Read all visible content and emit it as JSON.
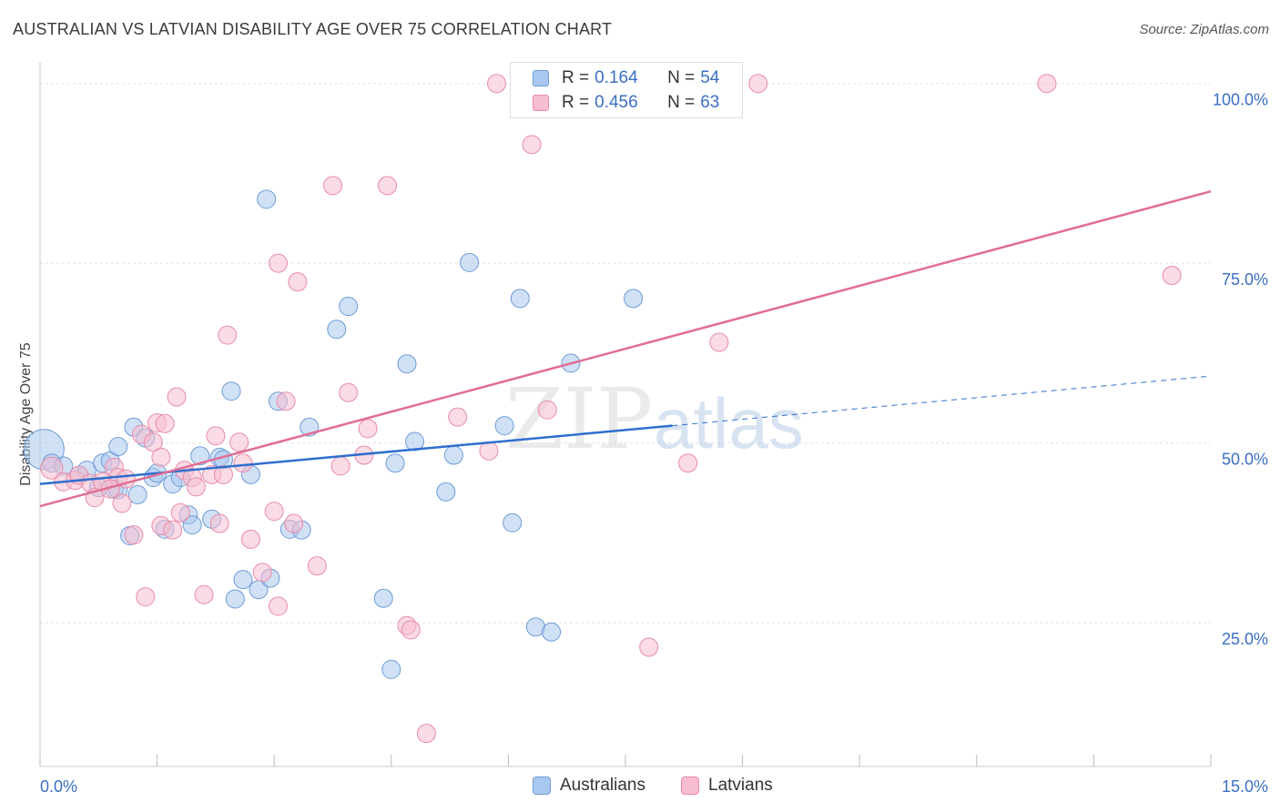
{
  "title": "AUSTRALIAN VS LATVIAN DISABILITY AGE OVER 75 CORRELATION CHART",
  "source": "Source: ZipAtlas.com",
  "watermark": {
    "zip": "ZIP",
    "atlas": "atlas"
  },
  "legend_top": [
    {
      "r_label": "R =",
      "r_value": "0.164",
      "n_label": "N =",
      "n_value": "54",
      "color": "#a9c8ef",
      "stroke": "#6f9bd6"
    },
    {
      "r_label": "R =",
      "r_value": "0.456",
      "n_label": "N =",
      "n_value": "63",
      "color": "#f7bdd0",
      "stroke": "#e78ca8"
    }
  ],
  "legend_bottom": [
    {
      "label": "Australians",
      "color": "#a9c8ef",
      "stroke": "#6f9bd6"
    },
    {
      "label": "Latvians",
      "color": "#f7bdd0",
      "stroke": "#e78ca8"
    }
  ],
  "chart_data": {
    "type": "scatter",
    "title": "AUSTRALIAN VS LATVIAN DISABILITY AGE OVER 75 CORRELATION CHART",
    "xlabel": "",
    "ylabel": "Disability Age Over 75",
    "xlim": [
      0,
      15
    ],
    "ylim": [
      5,
      103
    ],
    "x_ticks": [
      0,
      1.5,
      3,
      4.5,
      6,
      7.5,
      9,
      10.5,
      12,
      13.5,
      15
    ],
    "x_tick_labels": [
      {
        "value": 0,
        "label": "0.0%"
      },
      {
        "value": 15,
        "label": "15.0%"
      }
    ],
    "y_ticks": [
      {
        "value": 25,
        "label": "25.0%"
      },
      {
        "value": 50,
        "label": "50.0%"
      },
      {
        "value": 75,
        "label": "75.0%"
      },
      {
        "value": 100,
        "label": "100.0%"
      }
    ],
    "grid": true,
    "legend_placement": "top-center",
    "series": [
      {
        "name": "Australians",
        "color": "#a9c8ef",
        "stroke": "#6f9bd6",
        "line_color": "#2f6fce",
        "trend": {
          "x0": 0,
          "y0": 44.3,
          "x1": 8.1,
          "y1": 52.4
        },
        "trend_dashed": {
          "x0": 8.1,
          "y0": 52.4,
          "x1": 15,
          "y1": 59.3
        },
        "points": [
          [
            0.05,
            49.1,
            22
          ],
          [
            0.15,
            47.2,
            10
          ],
          [
            0.3,
            46.8,
            10
          ],
          [
            0.5,
            45.5,
            10
          ],
          [
            0.6,
            46.2,
            10
          ],
          [
            0.75,
            43.8,
            10
          ],
          [
            0.8,
            47.2,
            10
          ],
          [
            0.9,
            47.5,
            10
          ],
          [
            0.95,
            43.6,
            10
          ],
          [
            1.0,
            49.5,
            10
          ],
          [
            1.15,
            37.1,
            10
          ],
          [
            1.2,
            52.2,
            10
          ],
          [
            1.25,
            42.8,
            10
          ],
          [
            1.35,
            50.7,
            10
          ],
          [
            1.45,
            45.2,
            10
          ],
          [
            1.5,
            45.8,
            10
          ],
          [
            1.6,
            38.0,
            10
          ],
          [
            1.7,
            44.3,
            10
          ],
          [
            1.8,
            45.2,
            10
          ],
          [
            1.9,
            40.0,
            10
          ],
          [
            1.95,
            38.6,
            10
          ],
          [
            2.05,
            48.2,
            10
          ],
          [
            2.2,
            39.4,
            10
          ],
          [
            2.3,
            48.0,
            10
          ],
          [
            2.35,
            47.7,
            10
          ],
          [
            2.45,
            57.2,
            10
          ],
          [
            2.5,
            28.3,
            10
          ],
          [
            2.6,
            31.0,
            10
          ],
          [
            2.7,
            45.6,
            10
          ],
          [
            2.8,
            29.6,
            10
          ],
          [
            2.9,
            83.9,
            10
          ],
          [
            2.95,
            31.2,
            10
          ],
          [
            3.05,
            55.8,
            10
          ],
          [
            3.2,
            38.0,
            10
          ],
          [
            3.35,
            37.9,
            10
          ],
          [
            3.45,
            52.2,
            10
          ],
          [
            3.8,
            65.8,
            10
          ],
          [
            3.95,
            69.0,
            10
          ],
          [
            4.4,
            28.4,
            10
          ],
          [
            4.5,
            18.5,
            10
          ],
          [
            4.55,
            47.2,
            10
          ],
          [
            4.7,
            61.0,
            10
          ],
          [
            4.8,
            50.2,
            10
          ],
          [
            5.2,
            43.2,
            10
          ],
          [
            5.3,
            48.3,
            10
          ],
          [
            5.5,
            75.1,
            10
          ],
          [
            5.95,
            52.4,
            10
          ],
          [
            6.05,
            38.9,
            10
          ],
          [
            6.15,
            70.1,
            10
          ],
          [
            6.35,
            24.4,
            10
          ],
          [
            6.55,
            23.7,
            10
          ],
          [
            6.8,
            61.1,
            10
          ],
          [
            7.6,
            70.1,
            10
          ],
          [
            1.0,
            43.5,
            10
          ]
        ]
      },
      {
        "name": "Latvians",
        "color": "#f7bdd0",
        "stroke": "#e78ca8",
        "line_color": "#e06d96",
        "trend": {
          "x0": 0,
          "y0": 41.2,
          "x1": 15,
          "y1": 85.0
        },
        "points": [
          [
            0.15,
            46.5,
            12
          ],
          [
            0.3,
            44.6,
            10
          ],
          [
            0.45,
            44.8,
            10
          ],
          [
            0.5,
            45.5,
            10
          ],
          [
            0.65,
            44.4,
            10
          ],
          [
            0.7,
            42.4,
            10
          ],
          [
            0.8,
            44.6,
            10
          ],
          [
            0.95,
            46.6,
            10
          ],
          [
            1.0,
            45.2,
            10
          ],
          [
            1.05,
            41.6,
            10
          ],
          [
            1.1,
            45.0,
            10
          ],
          [
            1.2,
            37.2,
            10
          ],
          [
            1.3,
            51.2,
            10
          ],
          [
            1.35,
            28.6,
            10
          ],
          [
            1.45,
            50.1,
            10
          ],
          [
            1.5,
            52.8,
            10
          ],
          [
            1.55,
            48.0,
            10
          ],
          [
            1.55,
            38.5,
            10
          ],
          [
            1.6,
            52.7,
            10
          ],
          [
            1.7,
            37.9,
            10
          ],
          [
            1.75,
            56.4,
            10
          ],
          [
            1.85,
            46.2,
            10
          ],
          [
            1.95,
            45.2,
            10
          ],
          [
            2.0,
            43.9,
            10
          ],
          [
            2.1,
            28.9,
            10
          ],
          [
            2.2,
            45.6,
            10
          ],
          [
            2.3,
            38.8,
            10
          ],
          [
            2.4,
            65.0,
            10
          ],
          [
            2.35,
            45.6,
            10
          ],
          [
            2.55,
            50.1,
            10
          ],
          [
            2.6,
            47.2,
            10
          ],
          [
            2.7,
            36.6,
            10
          ],
          [
            2.85,
            32.0,
            10
          ],
          [
            3.0,
            40.5,
            10
          ],
          [
            3.05,
            75.0,
            10
          ],
          [
            3.05,
            27.3,
            10
          ],
          [
            3.15,
            55.8,
            10
          ],
          [
            3.25,
            38.8,
            10
          ],
          [
            3.3,
            72.4,
            10
          ],
          [
            3.55,
            32.9,
            10
          ],
          [
            3.75,
            85.8,
            10
          ],
          [
            3.85,
            46.8,
            10
          ],
          [
            3.95,
            57.0,
            10
          ],
          [
            4.15,
            48.3,
            10
          ],
          [
            4.2,
            52.0,
            10
          ],
          [
            4.45,
            85.8,
            10
          ],
          [
            4.7,
            24.6,
            10
          ],
          [
            4.75,
            24.0,
            10
          ],
          [
            4.95,
            9.6,
            10
          ],
          [
            5.35,
            53.6,
            10
          ],
          [
            5.75,
            48.9,
            10
          ],
          [
            5.85,
            100.0,
            10
          ],
          [
            6.3,
            91.5,
            10
          ],
          [
            6.5,
            54.6,
            10
          ],
          [
            8.3,
            47.2,
            10
          ],
          [
            7.8,
            21.6,
            10
          ],
          [
            8.7,
            64.0,
            10
          ],
          [
            9.2,
            100.0,
            10
          ],
          [
            12.9,
            100.0,
            10
          ],
          [
            14.5,
            73.3,
            10
          ],
          [
            1.8,
            40.3,
            10
          ],
          [
            2.25,
            51.0,
            10
          ],
          [
            0.9,
            43.6,
            10
          ]
        ]
      }
    ]
  }
}
